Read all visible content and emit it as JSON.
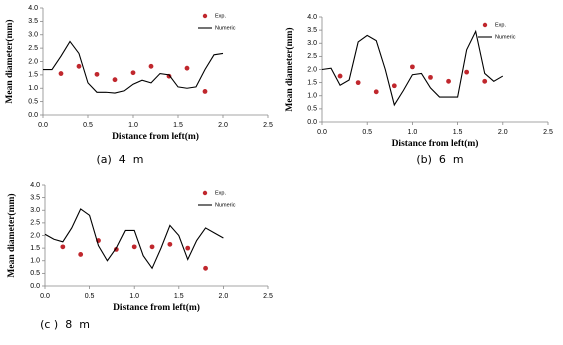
{
  "chart_data": [
    {
      "type": "line",
      "caption": "(a)  4  m",
      "ylabel": "Mean diameter(mm)",
      "xlabel": "Distance from left(m)",
      "xlim": [
        0,
        2.5
      ],
      "xticks": [
        {
          "value": 0,
          "label": "0.0"
        },
        {
          "value": 0.5,
          "label": "0.5"
        },
        {
          "value": 1,
          "label": "1.0"
        },
        {
          "value": 1.5,
          "label": "1.5"
        },
        {
          "value": 2,
          "label": "2.0"
        },
        {
          "value": 2.5,
          "label": "2.5"
        }
      ],
      "ylim": [
        0,
        4
      ],
      "yticks": [
        {
          "value": 0,
          "label": "0.0"
        },
        {
          "value": 0.5,
          "label": "0.5"
        },
        {
          "value": 1,
          "label": "1.0"
        },
        {
          "value": 1.5,
          "label": "1.5"
        },
        {
          "value": 2,
          "label": "2.0"
        },
        {
          "value": 2.5,
          "label": "2.5"
        },
        {
          "value": 3,
          "label": "3.0"
        },
        {
          "value": 3.5,
          "label": "3.5"
        },
        {
          "value": 4,
          "label": "4.0"
        }
      ],
      "legend": "upper right",
      "series": [
        {
          "name": "Exp.",
          "type": "scatter",
          "color": "#c0272d",
          "x": [
            0.2,
            0.4,
            0.6,
            0.8,
            1.0,
            1.2,
            1.4,
            1.6,
            1.8
          ],
          "values": [
            1.55,
            1.82,
            1.52,
            1.32,
            1.58,
            1.82,
            1.45,
            1.75,
            0.88
          ]
        },
        {
          "name": "Numeric",
          "type": "line",
          "color": "#000000",
          "x": [
            0,
            0.1,
            0.2,
            0.3,
            0.4,
            0.5,
            0.6,
            0.7,
            0.8,
            0.9,
            1.0,
            1.1,
            1.2,
            1.3,
            1.4,
            1.5,
            1.6,
            1.7,
            1.8,
            1.9,
            2.0
          ],
          "values": [
            1.7,
            1.7,
            2.2,
            2.75,
            2.3,
            1.2,
            0.85,
            0.85,
            0.82,
            0.9,
            1.15,
            1.3,
            1.2,
            1.55,
            1.5,
            1.05,
            1.0,
            1.05,
            1.7,
            2.25,
            2.3
          ]
        }
      ]
    },
    {
      "type": "line",
      "caption": "(b)  6  m",
      "ylabel": "Mean diameter(mm)",
      "xlabel": "Distance from left(m)",
      "xlim": [
        0,
        2.5
      ],
      "xticks": [
        {
          "value": 0,
          "label": "0.0"
        },
        {
          "value": 0.5,
          "label": "0.5"
        },
        {
          "value": 1,
          "label": "1.0"
        },
        {
          "value": 1.5,
          "label": "1.5"
        },
        {
          "value": 2,
          "label": "2.0"
        },
        {
          "value": 2.5,
          "label": "2.5"
        }
      ],
      "ylim": [
        0,
        4
      ],
      "yticks": [
        {
          "value": 0,
          "label": "0.0"
        },
        {
          "value": 0.5,
          "label": "0.5"
        },
        {
          "value": 1,
          "label": "1.0"
        },
        {
          "value": 1.5,
          "label": "1.5"
        },
        {
          "value": 2,
          "label": "2.0"
        },
        {
          "value": 2.5,
          "label": "2.5"
        },
        {
          "value": 3,
          "label": "3.0"
        },
        {
          "value": 3.5,
          "label": "3.5"
        },
        {
          "value": 4,
          "label": "4.0"
        }
      ],
      "legend": "upper right",
      "series": [
        {
          "name": "Exp.",
          "type": "scatter",
          "color": "#c0272d",
          "x": [
            0.2,
            0.4,
            0.6,
            0.8,
            1.0,
            1.2,
            1.4,
            1.6,
            1.8
          ],
          "values": [
            1.75,
            1.5,
            1.15,
            1.38,
            2.1,
            1.7,
            1.55,
            1.9,
            1.55
          ]
        },
        {
          "name": "Numeric",
          "type": "line",
          "color": "#000000",
          "x": [
            0,
            0.1,
            0.2,
            0.3,
            0.4,
            0.5,
            0.6,
            0.7,
            0.8,
            0.9,
            1.0,
            1.1,
            1.2,
            1.3,
            1.4,
            1.5,
            1.6,
            1.7,
            1.8,
            1.9,
            2.0
          ],
          "values": [
            2.0,
            2.05,
            1.4,
            1.6,
            3.05,
            3.3,
            3.1,
            2.0,
            0.65,
            1.2,
            1.8,
            1.85,
            1.3,
            0.95,
            0.95,
            0.95,
            2.75,
            3.45,
            1.85,
            1.55,
            1.75
          ]
        }
      ]
    },
    {
      "type": "line",
      "caption": "(c )  8  m",
      "ylabel": "Mean diameter(mm)",
      "xlabel": "Distance from left(m)",
      "xlim": [
        0,
        2.5
      ],
      "xticks": [
        {
          "value": 0,
          "label": "0.0"
        },
        {
          "value": 0.5,
          "label": "0.5"
        },
        {
          "value": 1,
          "label": "1.0"
        },
        {
          "value": 1.5,
          "label": "1.5"
        },
        {
          "value": 2,
          "label": "2.0"
        },
        {
          "value": 2.5,
          "label": "2.5"
        }
      ],
      "ylim": [
        0,
        4
      ],
      "yticks": [
        {
          "value": 0,
          "label": "0.0"
        },
        {
          "value": 0.5,
          "label": "0.5"
        },
        {
          "value": 1,
          "label": "1.0"
        },
        {
          "value": 1.5,
          "label": "1.5"
        },
        {
          "value": 2,
          "label": "2.0"
        },
        {
          "value": 2.5,
          "label": "2.5"
        },
        {
          "value": 3,
          "label": "3.0"
        },
        {
          "value": 3.5,
          "label": "3.5"
        },
        {
          "value": 4,
          "label": "4.0"
        }
      ],
      "legend": "upper right",
      "series": [
        {
          "name": "Exp.",
          "type": "scatter",
          "color": "#c0272d",
          "x": [
            0.2,
            0.4,
            0.6,
            0.8,
            1.0,
            1.2,
            1.4,
            1.6,
            1.8
          ],
          "values": [
            1.55,
            1.25,
            1.8,
            1.45,
            1.55,
            1.55,
            1.65,
            1.5,
            0.7
          ]
        },
        {
          "name": "Numeric",
          "type": "line",
          "color": "#000000",
          "x": [
            0,
            0.1,
            0.2,
            0.3,
            0.4,
            0.5,
            0.6,
            0.7,
            0.8,
            0.9,
            1.0,
            1.1,
            1.2,
            1.3,
            1.4,
            1.5,
            1.6,
            1.7,
            1.8,
            1.9,
            2.0
          ],
          "values": [
            2.05,
            1.85,
            1.75,
            2.3,
            3.05,
            2.8,
            1.6,
            1.0,
            1.5,
            2.2,
            2.2,
            1.2,
            0.7,
            1.5,
            2.4,
            2.0,
            1.05,
            1.8,
            2.3,
            2.1,
            1.9
          ]
        }
      ]
    }
  ]
}
